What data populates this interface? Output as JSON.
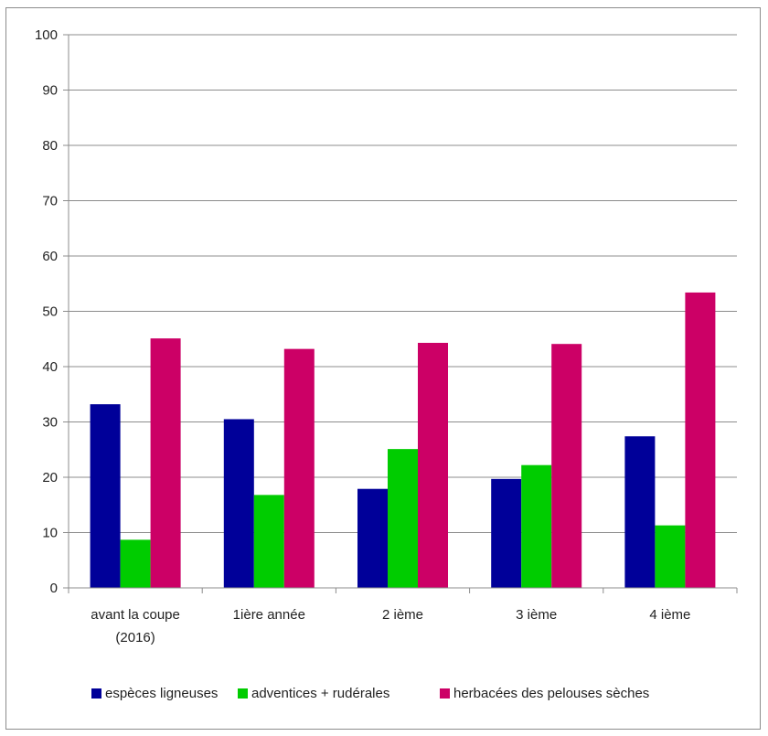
{
  "chart_data": {
    "type": "bar",
    "categories": [
      [
        "avant la coupe",
        "(2016)"
      ],
      [
        "1ière année"
      ],
      [
        "2 ième"
      ],
      [
        "3 ième"
      ],
      [
        "4 ième"
      ]
    ],
    "series": [
      {
        "name": "espèces ligneuses",
        "color": "#000099",
        "values": [
          33.2,
          30.5,
          17.9,
          19.7,
          27.4
        ]
      },
      {
        "name": "adventices + rudérales",
        "color": "#00cc00",
        "values": [
          8.7,
          16.8,
          25.1,
          22.2,
          11.3
        ]
      },
      {
        "name": "herbacées des pelouses sèches",
        "color": "#cc0066",
        "values": [
          45.1,
          43.2,
          44.3,
          44.1,
          53.4
        ]
      }
    ],
    "title": "",
    "xlabel": "",
    "ylabel": "",
    "ylim": [
      0,
      100
    ],
    "yticks": [
      "0",
      "10",
      "20",
      "30",
      "40",
      "50",
      "60",
      "70",
      "80",
      "90",
      "100"
    ],
    "grid": true,
    "legend": "bottom"
  }
}
